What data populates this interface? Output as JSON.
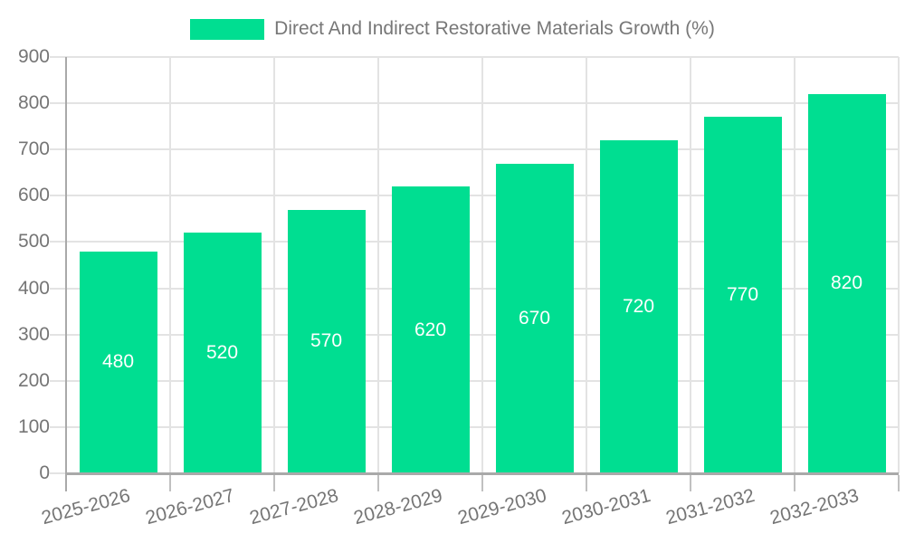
{
  "chart_data": {
    "type": "bar",
    "title": "Direct And Indirect Restorative Materials Growth (%)",
    "categories": [
      "2025-2026",
      "2026-2027",
      "2027-2028",
      "2028-2029",
      "2029-2030",
      "2030-2031",
      "2031-2032",
      "2032-2033"
    ],
    "values": [
      480,
      520,
      570,
      620,
      670,
      720,
      770,
      820
    ],
    "xlabel": "",
    "ylabel": "",
    "ylim": [
      0,
      900
    ],
    "yticks": [
      0,
      100,
      200,
      300,
      400,
      500,
      600,
      700,
      800,
      900
    ],
    "grid": true,
    "legend_position": "top",
    "value_label_position": "inside-center",
    "colors": {
      "bar": "#00DE91",
      "grid": "#E3E3E3",
      "axis_line": "#A9A9A9",
      "tick": "#C0C0C0",
      "axis_text": "#757575",
      "legend_text": "#777777",
      "value_text": "#FFFFFF",
      "background": "#FFFFFF"
    }
  }
}
